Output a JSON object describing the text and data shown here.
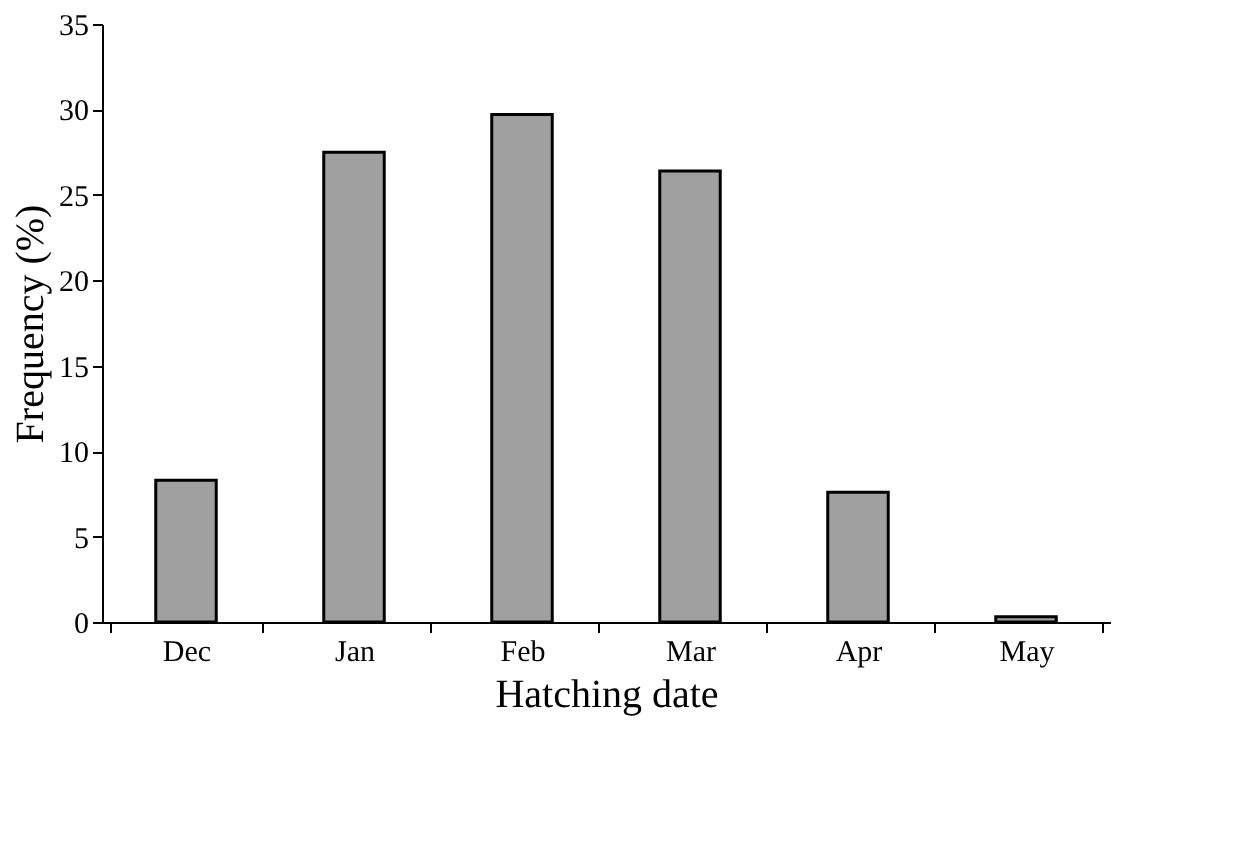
{
  "chart_data": {
    "type": "bar",
    "xlabel": "Hatching date",
    "ylabel": "Frequency (%)",
    "categories": [
      "Dec",
      "Jan",
      "Feb",
      "Mar",
      "Apr",
      "May"
    ],
    "values": [
      8.3,
      27.5,
      29.7,
      26.4,
      7.6,
      0.3
    ],
    "color": "#a0a0a0",
    "ylim": [
      0,
      35
    ],
    "yticks": [
      0,
      5,
      10,
      15,
      20,
      25,
      30,
      35
    ],
    "grid": false
  }
}
